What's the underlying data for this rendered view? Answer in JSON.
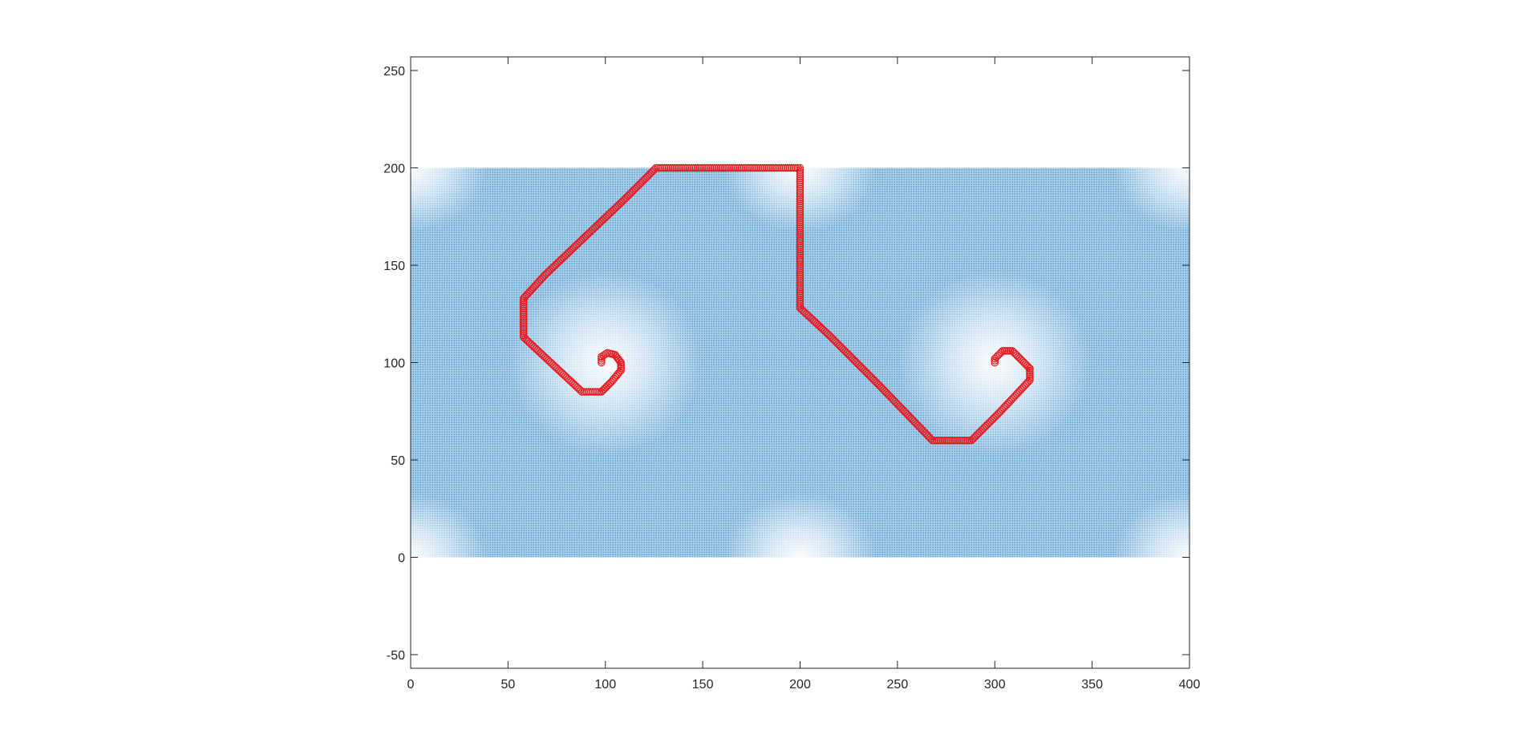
{
  "chart_data": {
    "type": "scatter",
    "title": "",
    "xlabel": "",
    "ylabel": "",
    "xlim": [
      0,
      400
    ],
    "ylim": [
      -57,
      257
    ],
    "xticks": [
      0,
      50,
      100,
      150,
      200,
      250,
      300,
      350,
      400
    ],
    "yticks": [
      -50,
      0,
      50,
      100,
      150,
      200,
      250
    ],
    "xtick_labels": [
      "0",
      "50",
      "100",
      "150",
      "200",
      "250",
      "300",
      "350",
      "400"
    ],
    "ytick_labels": [
      "-50",
      "0",
      "50",
      "100",
      "150",
      "200",
      "250"
    ],
    "grid": false,
    "legend": "none",
    "colors": {
      "field": "#5a9fd4",
      "trajectory": "#e8151b",
      "axes": "#262626",
      "background": "#ffffff"
    },
    "series": [
      {
        "kind": "vector_field",
        "x_range": [
          0,
          400
        ],
        "y_range": [
          0,
          200
        ],
        "calm_centers": [
          [
            100,
            100
          ],
          [
            300,
            100
          ],
          [
            0,
            200
          ],
          [
            200,
            200
          ],
          [
            400,
            200
          ],
          [
            0,
            0
          ],
          [
            200,
            0
          ],
          [
            400,
            0
          ]
        ]
      },
      {
        "kind": "trajectory",
        "marker": "circle",
        "points": [
          [
            98,
            100
          ],
          [
            98,
            103
          ],
          [
            101,
            105
          ],
          [
            105,
            104
          ],
          [
            108,
            100
          ],
          [
            108,
            96
          ],
          [
            103,
            90
          ],
          [
            98,
            85
          ],
          [
            88,
            85
          ],
          [
            73,
            99
          ],
          [
            58,
            113
          ],
          [
            58,
            133
          ],
          [
            69,
            145
          ],
          [
            90,
            165
          ],
          [
            110,
            184
          ],
          [
            126,
            200
          ],
          [
            200,
            200
          ],
          [
            200,
            128
          ],
          [
            215,
            114
          ],
          [
            240,
            89
          ],
          [
            268,
            60
          ],
          [
            288,
            60
          ],
          [
            303,
            75
          ],
          [
            318,
            91
          ],
          [
            318,
            97
          ],
          [
            309,
            106
          ],
          [
            304,
            106
          ],
          [
            300,
            102
          ],
          [
            300,
            100
          ]
        ]
      }
    ]
  }
}
